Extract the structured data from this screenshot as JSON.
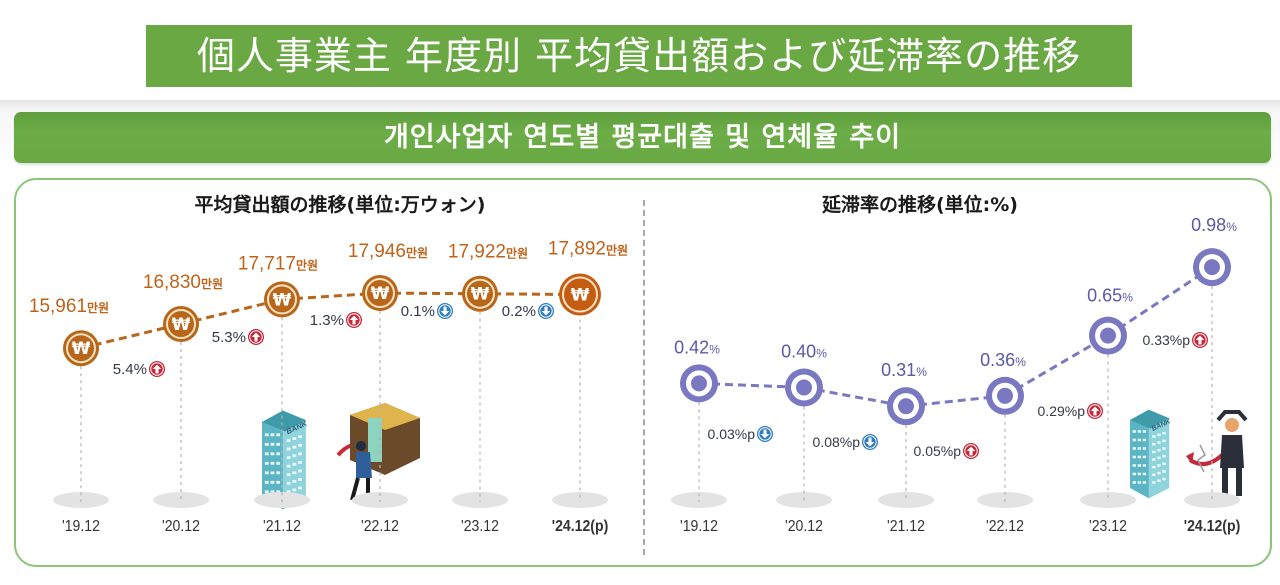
{
  "header": {
    "title": "個人事業主 年度別 平均貸出額および延滞率の推移",
    "korean_title": "개인사업자 연도별 평균대출 및 연체율 추이"
  },
  "colors": {
    "banner_green": "#6aa844",
    "panel_border": "#8cc47a",
    "loan_coin": "#b8661a",
    "loan_coin_last": "#c45d12",
    "loan_text": "#c0631a",
    "delinquency_purple": "#7a78c0",
    "delinquency_text": "#5a59a8",
    "up_icon": "#c8283a",
    "down_icon": "#2f7dc0"
  },
  "chart_data": [
    {
      "type": "line",
      "title": "平均貸出額の推移(単位:万ウォン)",
      "xlabel": "",
      "ylabel": "",
      "categories": [
        "'19.12",
        "'20.12",
        "'21.12",
        "'22.12",
        "'23.12",
        "'24.12(p)"
      ],
      "series": [
        {
          "name": "平均貸出額",
          "values": [
            15961,
            16830,
            17717,
            17946,
            17922,
            17892
          ]
        }
      ],
      "value_labels": [
        "15,961",
        "16,830",
        "17,717",
        "17,946",
        "17,922",
        "17,892"
      ],
      "value_unit": "만원",
      "changes": [
        {
          "text": "5.4%",
          "direction": "up"
        },
        {
          "text": "5.3%",
          "direction": "up"
        },
        {
          "text": "1.3%",
          "direction": "up"
        },
        {
          "text": "0.1%",
          "direction": "down"
        },
        {
          "text": "0.2%",
          "direction": "down"
        }
      ],
      "marker_icon": "won-coin-icon",
      "ylim": [
        15500,
        18200
      ],
      "grid": false,
      "legend": "none"
    },
    {
      "type": "line",
      "title": "延滞率の推移(単位:%)",
      "xlabel": "",
      "ylabel": "",
      "categories": [
        "'19.12",
        "'20.12",
        "'21.12",
        "'22.12",
        "'23.12",
        "'24.12(p)"
      ],
      "series": [
        {
          "name": "延滞率",
          "values": [
            0.42,
            0.4,
            0.31,
            0.36,
            0.65,
            0.98
          ]
        }
      ],
      "value_labels": [
        "0.42",
        "0.40",
        "0.31",
        "0.36",
        "0.65",
        "0.98"
      ],
      "value_unit": "%",
      "changes": [
        {
          "text": "0.03%p",
          "direction": "down"
        },
        {
          "text": "0.08%p",
          "direction": "down"
        },
        {
          "text": "0.05%p",
          "direction": "up"
        },
        {
          "text": "0.29%p",
          "direction": "up"
        },
        {
          "text": "0.33%p",
          "direction": "up"
        }
      ],
      "marker_icon": "target-ring-icon",
      "ylim": [
        0.2,
        1.0
      ],
      "grid": false,
      "legend": "none"
    }
  ],
  "illustrations": {
    "left": [
      "bank-building-icon",
      "person-carrying-money-icon"
    ],
    "right": [
      "bank-building-icon",
      "stressed-businessman-icon"
    ],
    "bank_sign": "BANK"
  }
}
